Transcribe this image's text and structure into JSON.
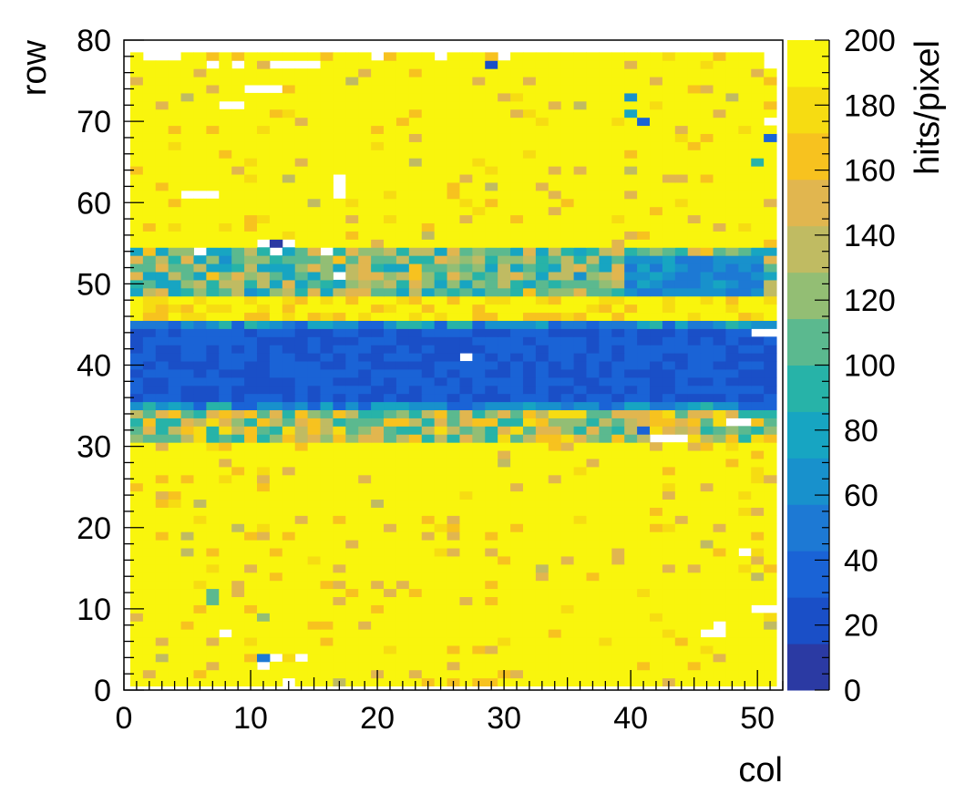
{
  "chart_data": {
    "type": "heatmap",
    "title": "",
    "xlabel": "col",
    "ylabel": "row",
    "zlabel": "hits/pixel",
    "xlim": [
      0,
      52
    ],
    "ylim": [
      0,
      80
    ],
    "zlim": [
      0,
      200
    ],
    "x_ticks": [
      "0",
      "10",
      "20",
      "30",
      "40",
      "50"
    ],
    "y_ticks": [
      "0",
      "10",
      "20",
      "30",
      "40",
      "50",
      "60",
      "70",
      "80"
    ],
    "z_ticks": [
      "0",
      "20",
      "40",
      "60",
      "80",
      "100",
      "120",
      "140",
      "160",
      "180",
      "200"
    ],
    "grid": false,
    "legend": "colorbar-right",
    "bins": {
      "x_start": 1,
      "x_end": 51,
      "y_start": 1,
      "y_end": 78,
      "width": 1
    },
    "colormap": [
      "#2b3aa3",
      "#1a4fc7",
      "#1a63d6",
      "#1d79d4",
      "#1891cc",
      "#17a5c2",
      "#27b3a8",
      "#5bb98f",
      "#93be74",
      "#c0bb62",
      "#e1b64f",
      "#f7c21f",
      "#f6dc12",
      "#f9f50d"
    ],
    "rows_summary": [
      {
        "rows": [
          1,
          30
        ],
        "typical_value": 198,
        "note": "mostly saturated yellow with sparse 160-185 pixels"
      },
      {
        "rows": [
          31,
          35
        ],
        "typical_value": 110,
        "note": "transition band, teal/green"
      },
      {
        "rows": [
          36,
          44
        ],
        "typical_value": 28,
        "note": "dark blue low-efficiency band"
      },
      {
        "rows": [
          45,
          48
        ],
        "typical_value": 185,
        "note": "yellow/orange"
      },
      {
        "rows": [
          49,
          54
        ],
        "typical_value": 95,
        "note": "teal band, lowest (~55) at cols 40-50"
      },
      {
        "rows": [
          55,
          78
        ],
        "typical_value": 198,
        "note": "mostly saturated yellow"
      }
    ],
    "white_cells": [
      [
        2,
        0
      ],
      [
        11,
        3
      ],
      [
        12,
        4
      ],
      [
        13,
        1
      ],
      [
        8,
        7
      ],
      [
        14,
        4
      ],
      [
        21,
        0
      ],
      [
        30,
        0
      ],
      [
        50,
        10
      ],
      [
        51,
        10
      ],
      [
        46,
        7
      ],
      [
        47,
        7
      ],
      [
        47,
        8
      ],
      [
        49,
        17
      ],
      [
        43,
        31
      ],
      [
        42,
        31
      ],
      [
        44,
        31
      ],
      [
        48,
        33
      ],
      [
        49,
        33
      ],
      [
        27,
        41
      ],
      [
        51,
        44
      ],
      [
        50,
        44
      ],
      [
        6,
        54
      ],
      [
        12,
        54
      ],
      [
        11,
        55
      ],
      [
        13,
        55
      ],
      [
        17,
        51
      ],
      [
        16,
        54
      ],
      [
        5,
        61
      ],
      [
        6,
        61
      ],
      [
        7,
        61
      ],
      [
        17,
        61
      ],
      [
        17,
        62
      ],
      [
        17,
        63
      ],
      [
        8,
        72
      ],
      [
        9,
        72
      ],
      [
        10,
        74
      ],
      [
        11,
        74
      ],
      [
        12,
        74
      ],
      [
        9,
        77
      ],
      [
        7,
        77
      ],
      [
        12,
        77
      ],
      [
        13,
        77
      ],
      [
        14,
        77
      ],
      [
        15,
        77
      ],
      [
        20,
        78
      ],
      [
        25,
        78
      ],
      [
        30,
        78
      ],
      [
        51,
        78
      ],
      [
        51,
        77
      ],
      [
        51,
        70
      ],
      [
        2,
        78
      ],
      [
        3,
        78
      ],
      [
        4,
        78
      ]
    ],
    "notable_low_cells": [
      [
        11,
        4,
        50
      ],
      [
        12,
        4,
        50
      ],
      [
        7,
        11,
        100
      ],
      [
        7,
        12,
        100
      ],
      [
        11,
        9,
        120
      ],
      [
        29,
        77,
        20
      ],
      [
        40,
        73,
        60
      ],
      [
        40,
        71,
        80
      ],
      [
        41,
        70,
        30
      ],
      [
        51,
        68,
        40
      ],
      [
        50,
        65,
        90
      ],
      [
        12,
        55,
        10
      ],
      [
        41,
        32,
        40
      ]
    ]
  }
}
